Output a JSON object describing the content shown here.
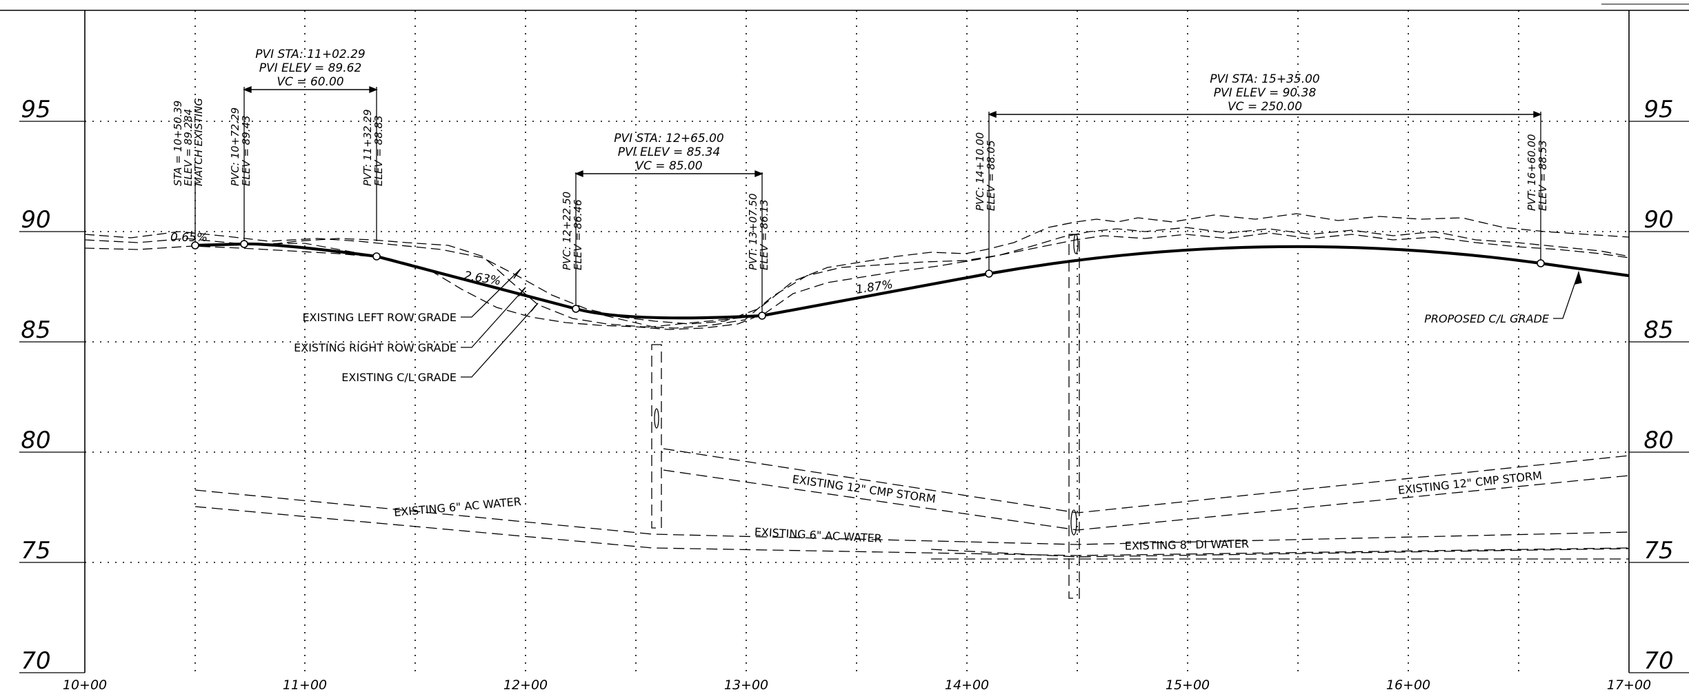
{
  "elevation_labels": [
    "95",
    "90",
    "85",
    "80",
    "75",
    "70"
  ],
  "station_labels": [
    "10+00",
    "11+00",
    "12+00",
    "13+00",
    "14+00",
    "15+00",
    "16+00",
    "17+00"
  ],
  "curves": [
    {
      "name": "curve-1",
      "pvi_sta": "PVI STA: 11+02.29",
      "pvi_elev": "PVI ELEV = 89.62",
      "vc": "VC = 60.00"
    },
    {
      "name": "curve-2",
      "pvi_sta": "PVI STA: 12+65.00",
      "pvi_elev": "PVI ELEV = 85.34",
      "vc": "VC = 85.00"
    },
    {
      "name": "curve-3",
      "pvi_sta": "PVI STA: 15+35.00",
      "pvi_elev": "PVI ELEV = 90.38",
      "vc": "VC = 250.00"
    }
  ],
  "points": [
    {
      "name": "match-existing",
      "lines": [
        "STA = 10+50.39",
        "ELEV = 89.284",
        "MATCH EXISTING"
      ]
    },
    {
      "name": "pvc-1",
      "lines": [
        "PVC: 10+72.29",
        "ELEV = 89.43"
      ]
    },
    {
      "name": "pvt-1",
      "lines": [
        "PVT: 11+32.29",
        "ELEV = 88.83"
      ]
    },
    {
      "name": "pvc-2",
      "lines": [
        "PVC: 12+22.50",
        "ELEV = 86.46"
      ]
    },
    {
      "name": "pvt-2",
      "lines": [
        "PVT: 13+07.50",
        "ELEV = 86.13"
      ]
    },
    {
      "name": "pvc-3",
      "lines": [
        "PVC: 14+10.00",
        "ELEV = 88.05"
      ]
    },
    {
      "name": "pvt-3",
      "lines": [
        "PVT: 16+60.00",
        "ELEV = 88.53"
      ]
    }
  ],
  "grades": [
    "0.65%",
    "2.63%",
    "1.87%"
  ],
  "callouts": {
    "left_row": "EXISTING LEFT ROW GRADE",
    "right_row": "EXISTING RIGHT ROW GRADE",
    "existing_cl": "EXISTING C/L GRADE",
    "proposed_cl": "PROPOSED C/L GRADE"
  },
  "utilities": {
    "water_6_a": "EXISTING 6\" AC WATER",
    "water_6_b": "EXISTING 6\" AC WATER",
    "storm_12_a": "EXISTING 12\" CMP STORM",
    "storm_12_b": "EXISTING 12\" CMP STORM",
    "water_8": "EXISTING 8\" DI WATER"
  }
}
